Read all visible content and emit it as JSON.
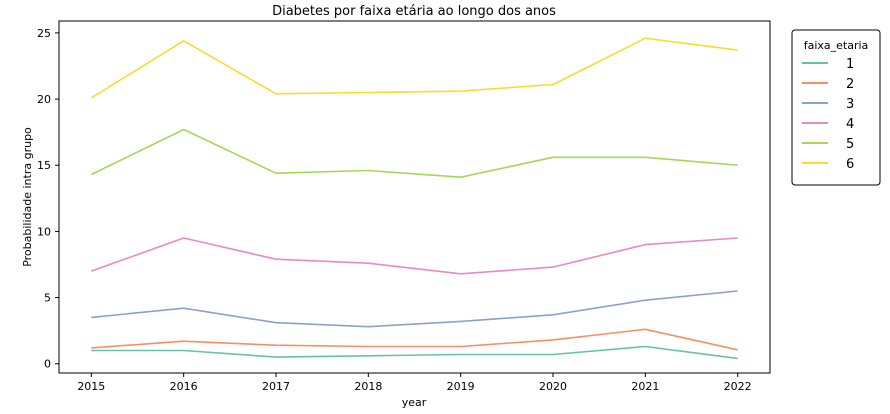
{
  "chart_data": {
    "type": "line",
    "title": "Diabetes por faixa etária ao longo dos anos",
    "xlabel": "year",
    "ylabel": "Probabilidade intra grupo",
    "x": [
      2015,
      2016,
      2017,
      2018,
      2019,
      2020,
      2021,
      2022
    ],
    "xlim": [
      2014.65,
      2022.35
    ],
    "ylim": [
      -0.7,
      25.9
    ],
    "yticks": [
      0,
      5,
      10,
      15,
      20,
      25
    ],
    "grid": false,
    "legend": {
      "title": "faixa_etaria",
      "placement": "outside-right"
    },
    "series": [
      {
        "name": "1",
        "color": "#66c2a5",
        "values": [
          1.0,
          1.0,
          0.5,
          0.6,
          0.7,
          0.7,
          1.3,
          0.4
        ]
      },
      {
        "name": "2",
        "color": "#fc8d62",
        "values": [
          1.2,
          1.7,
          1.4,
          1.3,
          1.3,
          1.8,
          2.6,
          1.05
        ]
      },
      {
        "name": "3",
        "color": "#8da0cb",
        "values": [
          3.5,
          4.2,
          3.1,
          2.8,
          3.2,
          3.7,
          4.8,
          5.5
        ]
      },
      {
        "name": "4",
        "color": "#e78ac3",
        "values": [
          7.0,
          9.5,
          7.9,
          7.6,
          6.8,
          7.3,
          9.0,
          9.5
        ]
      },
      {
        "name": "5",
        "color": "#a6d854",
        "values": [
          14.3,
          17.7,
          14.4,
          14.6,
          14.1,
          15.6,
          15.6,
          15.0
        ]
      },
      {
        "name": "6",
        "color": "#ffd92f",
        "values": [
          20.1,
          24.4,
          20.4,
          20.5,
          20.6,
          21.1,
          24.6,
          23.7
        ]
      }
    ]
  }
}
